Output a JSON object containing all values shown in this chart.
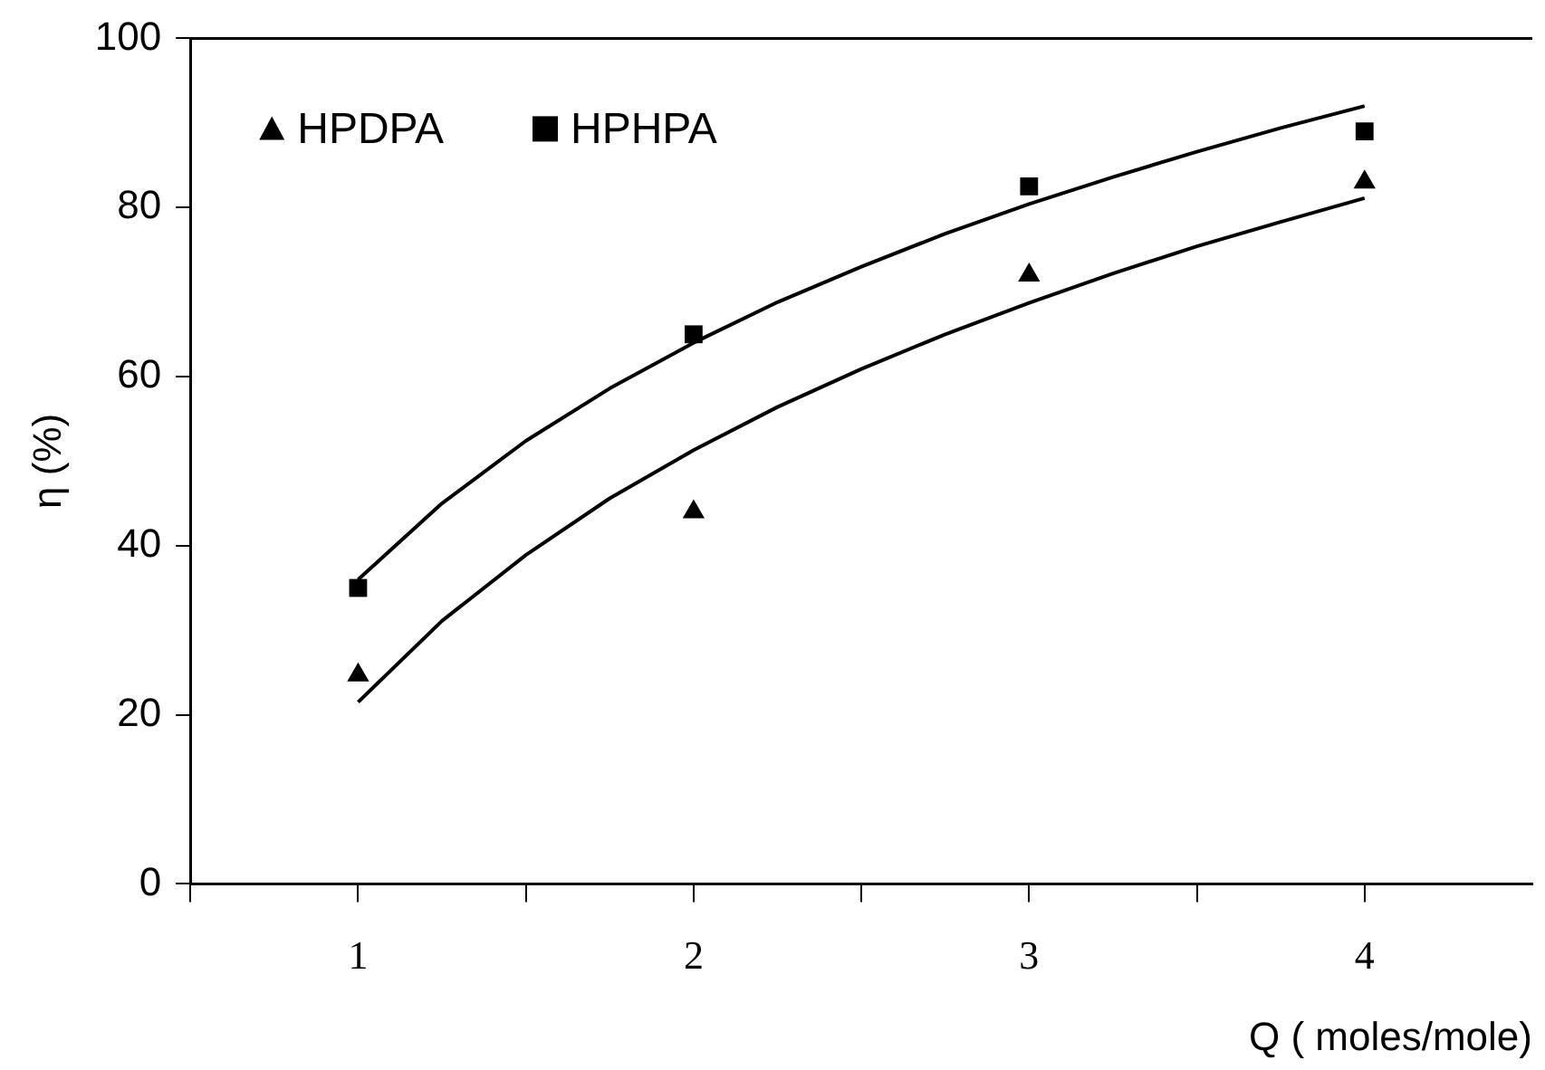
{
  "chart_data": {
    "type": "scatter",
    "xlabel": "Q ( moles/mole)",
    "ylabel": "η (%)",
    "xlim": [
      0.5,
      4.5
    ],
    "xticks": [
      {
        "value": 0.5,
        "label": null
      },
      1,
      {
        "value": 1.5,
        "label": null
      },
      2,
      {
        "value": 2.5,
        "label": null
      },
      3,
      {
        "value": 3.5,
        "label": null
      },
      4
    ],
    "ylim": [
      0,
      100
    ],
    "yticks": [
      0,
      20,
      40,
      60,
      80,
      100
    ],
    "grid": false,
    "legend": "top left",
    "series": [
      {
        "name": "HPDPA",
        "marker": "triangle",
        "color": "#000000",
        "x": [
          1,
          2,
          3,
          4
        ],
        "values": [
          24.7,
          44,
          72,
          83
        ]
      },
      {
        "name": "HPHPA",
        "marker": "square",
        "color": "#000000",
        "x": [
          1,
          2,
          3,
          4
        ],
        "values": [
          35,
          65,
          82.5,
          89
        ]
      },
      {
        "type": "line",
        "marker": "none",
        "color": "#000000",
        "x": [
          1,
          1.25,
          1.5,
          1.75,
          2,
          2.25,
          2.5,
          2.75,
          3,
          3.25,
          3.5,
          3.75,
          4
        ],
        "values": [
          21.5,
          31.1,
          38.9,
          45.6,
          51.3,
          56.4,
          60.9,
          65.0,
          68.7,
          72.2,
          75.4,
          78.3,
          81.1
        ]
      },
      {
        "type": "line",
        "marker": "none",
        "color": "#000000",
        "x": [
          1,
          1.25,
          1.5,
          1.75,
          2,
          2.25,
          2.5,
          2.75,
          3,
          3.25,
          3.5,
          3.75,
          4
        ],
        "values": [
          36,
          45.0,
          52.4,
          58.6,
          64.0,
          68.8,
          73.0,
          76.9,
          80.4,
          83.6,
          86.6,
          89.4,
          92.0
        ]
      }
    ]
  }
}
